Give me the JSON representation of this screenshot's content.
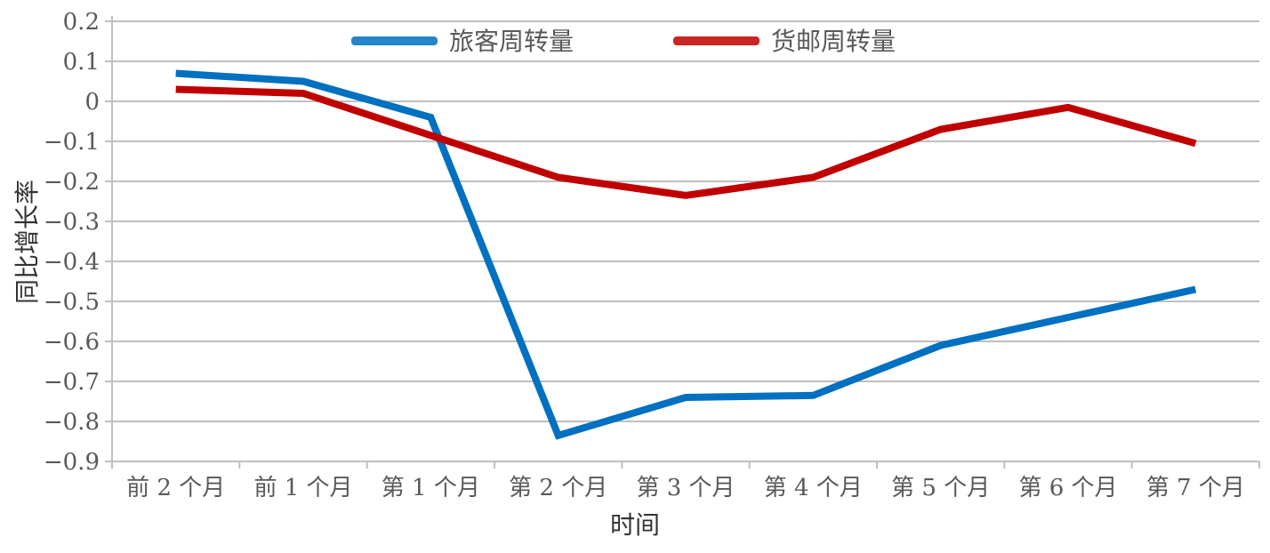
{
  "chart_data": {
    "type": "line",
    "xlabel": "时间",
    "ylabel": "同比增长率",
    "categories": [
      "前 2 个月",
      "前 1 个月",
      "第 1 个月",
      "第 2 个月",
      "第 3 个月",
      "第 4 个月",
      "第 5 个月",
      "第 6 个月",
      "第 7 个月"
    ],
    "ylim": [
      -0.9,
      0.2
    ],
    "yticks": [
      "0.2",
      "0.1",
      "0",
      "−0.1",
      "−0.2",
      "−0.3",
      "−0.4",
      "−0.5",
      "−0.6",
      "−0.7",
      "−0.8",
      "−0.9"
    ],
    "ytick_values": [
      0.2,
      0.1,
      0,
      -0.1,
      -0.2,
      -0.3,
      -0.4,
      -0.5,
      -0.6,
      -0.7,
      -0.8,
      -0.9
    ],
    "grid": true,
    "legend_position": "top",
    "series": [
      {
        "name": "旅客周转量",
        "color": "#0070c0",
        "values": [
          0.07,
          0.05,
          -0.04,
          -0.835,
          -0.74,
          -0.735,
          -0.61,
          -0.54,
          -0.47
        ]
      },
      {
        "name": "货邮周转量",
        "color": "#c00000",
        "values": [
          0.03,
          0.02,
          -0.085,
          -0.19,
          -0.235,
          -0.19,
          -0.07,
          -0.015,
          -0.105
        ]
      }
    ]
  }
}
